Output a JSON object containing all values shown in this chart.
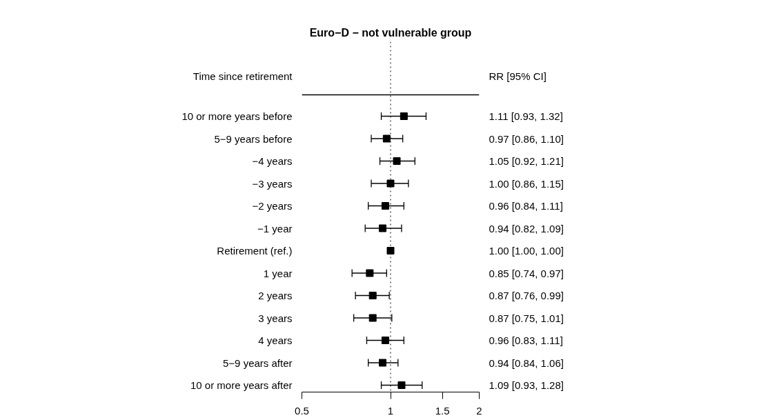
{
  "chart_data": {
    "type": "scatter",
    "orientation": "horizontal",
    "title": "Euro−D − not vulnerable group",
    "ylabel": "Time since retirement",
    "y2label": "RR [95% CI]",
    "categories": [
      "10 or more years before",
      "5−9 years before",
      "−4 years",
      "−3 years",
      "−2 years",
      "−1 year",
      "Retirement (ref.)",
      "1 year",
      "2 years",
      "3 years",
      "4 years",
      "5−9 years after",
      "10 or more years after"
    ],
    "series": [
      {
        "color": "#000000",
        "values": [
          1.11,
          0.97,
          1.05,
          1.0,
          0.96,
          0.94,
          1.0,
          0.85,
          0.87,
          0.87,
          0.96,
          0.94,
          1.09
        ],
        "errors": [
          [
            0.93,
            1.32
          ],
          [
            0.86,
            1.1
          ],
          [
            0.92,
            1.21
          ],
          [
            0.86,
            1.15
          ],
          [
            0.84,
            1.11
          ],
          [
            0.82,
            1.09
          ],
          [
            1.0,
            1.0
          ],
          [
            0.74,
            0.97
          ],
          [
            0.76,
            0.99
          ],
          [
            0.75,
            1.01
          ],
          [
            0.83,
            1.11
          ],
          [
            0.84,
            1.06
          ],
          [
            0.93,
            1.28
          ]
        ],
        "value_labels": [
          "1.11 [0.93, 1.32]",
          "0.97 [0.86, 1.10]",
          "1.05 [0.92, 1.21]",
          "1.00 [0.86, 1.15]",
          "0.96 [0.84, 1.11]",
          "0.94 [0.82, 1.09]",
          "1.00 [1.00, 1.00]",
          "0.85 [0.74, 0.97]",
          "0.87 [0.76, 0.99]",
          "0.87 [0.75, 1.01]",
          "0.96 [0.83, 1.11]",
          "0.94 [0.84, 1.06]",
          "1.09 [0.93, 1.28]"
        ]
      }
    ],
    "marker": "square",
    "log": "x",
    "xlim": [
      0.5,
      2
    ],
    "xticks": [
      0.5,
      1,
      1.5,
      2
    ],
    "tick_labels": "x",
    "grid": false,
    "ref_lines": [
      {
        "axis": "x",
        "value": 1,
        "line_style": "dotted"
      }
    ]
  }
}
